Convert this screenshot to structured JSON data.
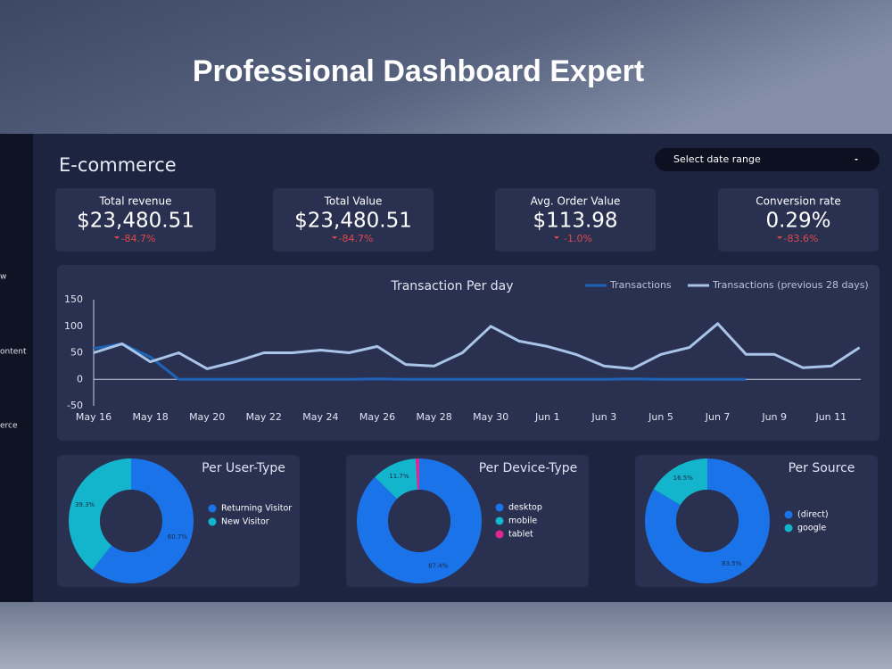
{
  "header": {
    "title": "Professional Dashboard Expert"
  },
  "sidebar": {
    "items": [
      "w",
      "ontent",
      "erce"
    ]
  },
  "dashboard": {
    "title": "E-commerce",
    "date_picker": "Select date range"
  },
  "kpis": [
    {
      "label": "Total revenue",
      "value": "$23,480.51",
      "change": "-84.7%"
    },
    {
      "label": "Total Value",
      "value": "$23,480.51",
      "change": "-84.7%"
    },
    {
      "label": "Avg. Order Value",
      "value": "$113.98",
      "change": "-1.0%"
    },
    {
      "label": "Conversion rate",
      "value": "0.29%",
      "change": "-83.6%"
    }
  ],
  "chart_data": [
    {
      "type": "line",
      "title": "Transaction Per day",
      "categories": [
        "May 16",
        null,
        "May 18",
        null,
        "May 20",
        null,
        "May 22",
        null,
        "May 24",
        null,
        "May 26",
        null,
        "May 28",
        null,
        "May 30",
        null,
        "Jun 1",
        null,
        "Jun 3",
        null,
        "Jun 5",
        null,
        "Jun 7",
        null,
        "Jun 9",
        null,
        "Jun 11",
        null
      ],
      "series": [
        {
          "name": "Transactions",
          "color": "#1f63b8",
          "values": [
            58,
            67,
            42,
            0,
            0,
            0,
            0,
            0,
            0,
            0,
            1,
            0,
            0,
            0,
            0,
            0,
            0,
            0,
            0,
            1,
            0,
            0,
            0,
            0,
            null,
            null,
            null,
            null
          ]
        },
        {
          "name": "Transactions (previous 28 days)",
          "color": "#a9c4e8",
          "values": [
            50,
            67,
            33,
            50,
            20,
            33,
            50,
            50,
            55,
            50,
            62,
            28,
            25,
            50,
            100,
            72,
            62,
            47,
            25,
            20,
            47,
            60,
            105,
            47,
            47,
            22,
            25,
            60
          ]
        }
      ],
      "ylim": [
        -50,
        150
      ],
      "yticks": [
        -50,
        0,
        50,
        100,
        150
      ]
    },
    {
      "type": "pie",
      "title": "Per User-Type",
      "categories": [
        "Returning Visitor",
        "New Visitor"
      ],
      "values": [
        60.7,
        39.3
      ],
      "value_labels": [
        "60.7%",
        "39.3%"
      ],
      "colors": [
        "#1a73e8",
        "#12b5cb"
      ]
    },
    {
      "type": "pie",
      "title": "Per Device-Type",
      "categories": [
        "desktop",
        "mobile",
        "tablet"
      ],
      "values": [
        87.4,
        11.7,
        0.9
      ],
      "value_labels": [
        "87.4%",
        "11.7%",
        null
      ],
      "colors": [
        "#1a73e8",
        "#12b5cb",
        "#e52592"
      ]
    },
    {
      "type": "pie",
      "title": "Per Source",
      "categories": [
        "(direct)",
        "google"
      ],
      "values": [
        83.5,
        16.5
      ],
      "value_labels": [
        "83.5%",
        "16.5%"
      ],
      "colors": [
        "#1a73e8",
        "#12b5cb"
      ]
    }
  ]
}
